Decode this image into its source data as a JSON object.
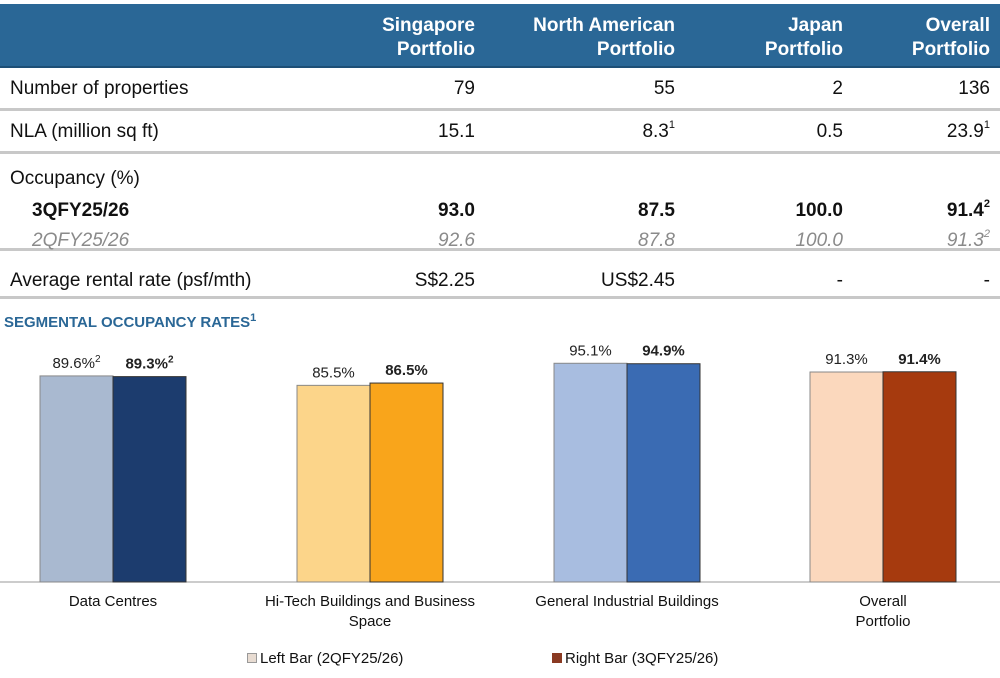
{
  "table": {
    "columns": [
      "Singapore Portfolio",
      "North American Portfolio",
      "Japan Portfolio",
      "Overall Portfolio"
    ],
    "columns_lines": [
      [
        "Singapore",
        "Portfolio"
      ],
      [
        "North American",
        "Portfolio"
      ],
      [
        "Japan",
        "Portfolio"
      ],
      [
        "Overall",
        "Portfolio"
      ]
    ],
    "rows": {
      "properties": {
        "label": "Number of properties",
        "values": [
          "79",
          "55",
          "2",
          "136"
        ]
      },
      "nla": {
        "label": "NLA (million sq ft)",
        "values": [
          "15.1",
          "8.3",
          "0.5",
          "23.9"
        ],
        "sups": [
          "",
          "1",
          "",
          "1"
        ]
      },
      "occupancy": {
        "label": "Occupancy (%)"
      },
      "q3": {
        "label": "3QFY25/26",
        "values": [
          "93.0",
          "87.5",
          "100.0",
          "91.4"
        ],
        "sups": [
          "",
          "",
          "",
          "2"
        ]
      },
      "q2": {
        "label": "2QFY25/26",
        "values": [
          "92.6",
          "87.8",
          "100.0",
          "91.3"
        ],
        "sups": [
          "",
          "",
          "",
          "2"
        ]
      },
      "rent": {
        "label": "Average rental rate (psf/mth)",
        "values": [
          "S$2.25",
          "US$2.45",
          "-",
          "-"
        ]
      }
    }
  },
  "chart_data": {
    "type": "bar",
    "title": "SEGMENTAL OCCUPANCY RATES",
    "title_sup": "1",
    "categories": [
      "Data Centres",
      "Hi-Tech Buildings and Business Space",
      "General Industrial Buildings",
      "Overall Portfolio"
    ],
    "category_lines": [
      [
        "Data Centres"
      ],
      [
        "Hi-Tech Buildings and Business",
        "Space"
      ],
      [
        "General Industrial Buildings"
      ],
      [
        "Overall",
        "Portfolio"
      ]
    ],
    "series": [
      {
        "name": "Left Bar (2QFY25/26)",
        "values": [
          89.6,
          85.5,
          95.1,
          91.3
        ],
        "labels": [
          "89.6%",
          "85.5%",
          "95.1%",
          "91.3%"
        ],
        "sups": [
          "2",
          "",
          "",
          ""
        ],
        "colors": [
          "#a9b9d0",
          "#fcd58a",
          "#a8bde0",
          "#fbd8bd"
        ]
      },
      {
        "name": "Right Bar (3QFY25/26)",
        "values": [
          89.3,
          86.5,
          94.9,
          91.4
        ],
        "labels": [
          "89.3%",
          "86.5%",
          "94.9%",
          "91.4%"
        ],
        "sups": [
          "2",
          "",
          "",
          ""
        ],
        "colors": [
          "#1c3c6e",
          "#f9a51b",
          "#3a6bb3",
          "#a63a0e"
        ]
      }
    ],
    "ylim": [
      0,
      100
    ],
    "grid": false,
    "legend": "bottom",
    "legend_colors": [
      "#e8dcd2",
      "#8a3a22"
    ]
  }
}
